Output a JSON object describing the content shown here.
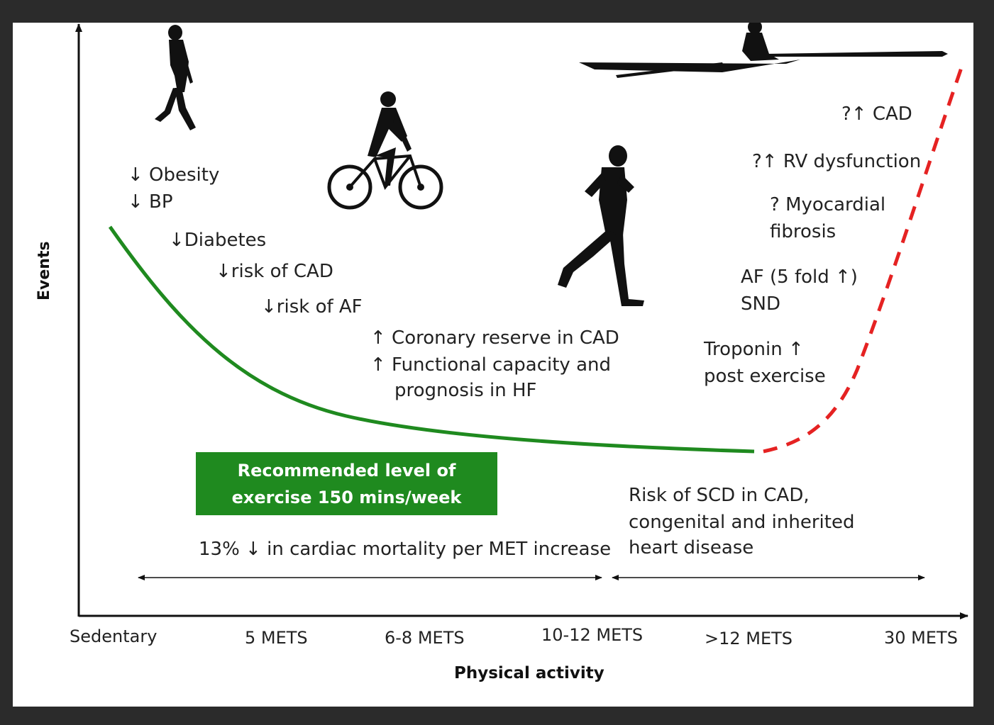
{
  "axes": {
    "y_label": "Events",
    "x_label": "Physical activity",
    "ticks": [
      "Sedentary",
      "5 METS",
      "6-8 METS",
      "10-12 METS",
      ">12 METS",
      "30 METS"
    ]
  },
  "benefits": {
    "obesity": "↓ Obesity",
    "bp": "↓ BP",
    "diabetes": "↓Diabetes",
    "cad": "↓risk of CAD",
    "af": "↓risk of AF",
    "coronary": "↑ Coronary reserve in CAD",
    "functional_1": "↑ Functional capacity and",
    "functional_2": "prognosis in HF"
  },
  "risks": {
    "cad": "?↑ CAD",
    "rv": "?↑ RV dysfunction",
    "fibrosis_1": "? Myocardial",
    "fibrosis_2": "fibrosis",
    "af": "AF (5 fold ↑)",
    "snd": "SND",
    "troponin_1": "Troponin ↑",
    "troponin_2": "post exercise"
  },
  "recommendation": {
    "line1": "Recommended level of",
    "line2": "exercise 150 mins/week"
  },
  "mortality": "13% ↓ in cardiac mortality per MET increase",
  "scd": {
    "line1": "Risk of SCD in CAD,",
    "line2": "congenital and inherited",
    "line3": "heart disease"
  },
  "colors": {
    "benefit_curve": "#1f8a1f",
    "risk_curve": "#e52222",
    "box": "#1f8a1f"
  }
}
